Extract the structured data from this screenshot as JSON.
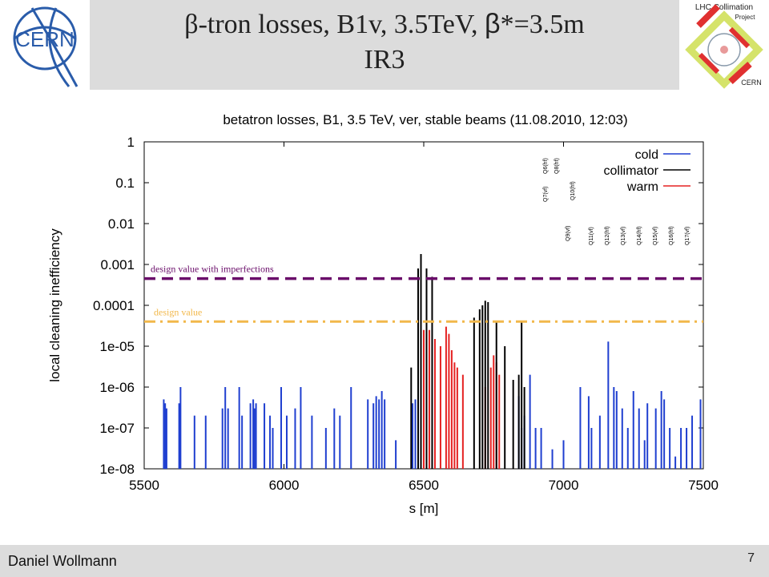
{
  "slide": {
    "title_line1_pre": "β-tron losses, B1v, 3.5TeV, ",
    "title_beta": "β",
    "title_line1_post": "*=3.5m",
    "title_line2": "IR3",
    "cern_logo_text": "CERN",
    "lhc_logo_line1": "LHC Collimation",
    "lhc_logo_line2": "Project",
    "lhc_logo_line3": "CERN",
    "footer_author": "Daniel Wollmann",
    "page_number": "7"
  },
  "colors": {
    "cold": "#1f3fd0",
    "collimator": "#000000",
    "warm": "#e52222",
    "design_imperfections": "#6a0d6a",
    "design": "#f2b84b"
  },
  "chart_data": {
    "type": "bar",
    "title": "betatron losses, B1, 3.5 TeV, ver, stable beams (11.08.2010, 12:03)",
    "xlabel": "s [m]",
    "ylabel": "local cleaning inefficiency",
    "xlim": [
      5500,
      7500
    ],
    "ylim": [
      1e-08,
      1
    ],
    "yscale": "log",
    "xticks": [
      "5500",
      "6000",
      "6500",
      "7000",
      "7500"
    ],
    "yticks": [
      "1e-08",
      "1e-07",
      "1e-06",
      "1e-05",
      "0.0001",
      "0.001",
      "0.01",
      "0.1",
      "1"
    ],
    "grid": false,
    "legend_position": "top-right",
    "legend": [
      "cold",
      "collimator",
      "warm"
    ],
    "thresholds": [
      {
        "label": "design value with imperfections",
        "value": 0.00045
      },
      {
        "label": "design value",
        "value": 4e-05
      }
    ],
    "magnet_labels": [
      "Q6(hf)",
      "Q8(hf)",
      "Q7(vf)",
      "Q10(hf)",
      "Q9(vf)",
      "Q11(vf)",
      "Q12(hf)",
      "Q13(vf)",
      "Q14(hf)",
      "Q15(vf)",
      "Q16(hf)",
      "Q17(vf)"
    ],
    "series": [
      {
        "name": "cold",
        "points": [
          [
            5570,
            5e-07
          ],
          [
            5575,
            4e-07
          ],
          [
            5580,
            3e-07
          ],
          [
            5625,
            4e-07
          ],
          [
            5630,
            1e-06
          ],
          [
            5680,
            2e-07
          ],
          [
            5720,
            2e-07
          ],
          [
            5780,
            3e-07
          ],
          [
            5790,
            1e-06
          ],
          [
            5800,
            3e-07
          ],
          [
            5840,
            1e-06
          ],
          [
            5850,
            2e-07
          ],
          [
            5880,
            4e-07
          ],
          [
            5890,
            5e-07
          ],
          [
            5895,
            3e-07
          ],
          [
            5900,
            4e-07
          ],
          [
            5930,
            4e-07
          ],
          [
            5950,
            2e-07
          ],
          [
            5960,
            1e-07
          ],
          [
            5990,
            1e-06
          ],
          [
            6010,
            2e-07
          ],
          [
            6040,
            3e-07
          ],
          [
            6060,
            1e-06
          ],
          [
            6100,
            2e-07
          ],
          [
            6150,
            1e-07
          ],
          [
            6180,
            3e-07
          ],
          [
            6200,
            2e-07
          ],
          [
            6240,
            1e-06
          ],
          [
            6300,
            5e-07
          ],
          [
            6320,
            4e-07
          ],
          [
            6330,
            6e-07
          ],
          [
            6340,
            5e-07
          ],
          [
            6350,
            8e-07
          ],
          [
            6360,
            5e-07
          ],
          [
            6400,
            5e-08
          ],
          [
            6460,
            4e-07
          ],
          [
            6470,
            5e-07
          ],
          [
            6840,
            6e-07
          ],
          [
            6850,
            1e-07
          ],
          [
            6860,
            2e-07
          ],
          [
            6880,
            2e-06
          ],
          [
            6900,
            1e-07
          ],
          [
            6920,
            1e-07
          ],
          [
            6960,
            3e-08
          ],
          [
            7000,
            5e-08
          ],
          [
            7060,
            1e-06
          ],
          [
            7090,
            6e-07
          ],
          [
            7100,
            1e-07
          ],
          [
            7130,
            2e-07
          ],
          [
            7160,
            1.3e-05
          ],
          [
            7180,
            1e-06
          ],
          [
            7190,
            8e-07
          ],
          [
            7210,
            3e-07
          ],
          [
            7230,
            1e-07
          ],
          [
            7250,
            8e-07
          ],
          [
            7270,
            3e-07
          ],
          [
            7290,
            5e-08
          ],
          [
            7300,
            4e-07
          ],
          [
            7330,
            3e-07
          ],
          [
            7350,
            8e-07
          ],
          [
            7360,
            5e-07
          ],
          [
            7380,
            1e-07
          ],
          [
            7400,
            2e-08
          ],
          [
            7420,
            1e-07
          ],
          [
            7440,
            1e-07
          ],
          [
            7460,
            2e-07
          ],
          [
            7490,
            5e-07
          ]
        ]
      },
      {
        "name": "collimator",
        "points": [
          [
            6455,
            3e-06
          ],
          [
            6480,
            0.0008
          ],
          [
            6490,
            0.0018
          ],
          [
            6510,
            0.0008
          ],
          [
            6530,
            0.0005
          ],
          [
            6680,
            5e-05
          ],
          [
            6700,
            8e-05
          ],
          [
            6710,
            0.0001
          ],
          [
            6720,
            0.00013
          ],
          [
            6730,
            0.00012
          ],
          [
            6760,
            4e-05
          ],
          [
            6790,
            1e-05
          ],
          [
            6820,
            1.5e-06
          ],
          [
            6840,
            2e-06
          ],
          [
            6850,
            4e-05
          ],
          [
            6860,
            1e-06
          ]
        ]
      },
      {
        "name": "warm",
        "points": [
          [
            6500,
            2.5e-05
          ],
          [
            6510,
            2e-05
          ],
          [
            6520,
            2.5e-05
          ],
          [
            6540,
            1.5e-05
          ],
          [
            6560,
            1e-05
          ],
          [
            6580,
            3e-05
          ],
          [
            6590,
            2e-05
          ],
          [
            6600,
            8e-06
          ],
          [
            6610,
            4e-06
          ],
          [
            6620,
            3e-06
          ],
          [
            6640,
            2e-06
          ],
          [
            6720,
            1e-06
          ],
          [
            6740,
            3e-06
          ],
          [
            6750,
            6e-06
          ],
          [
            6760,
            4e-06
          ],
          [
            6770,
            2e-06
          ]
        ]
      }
    ]
  }
}
